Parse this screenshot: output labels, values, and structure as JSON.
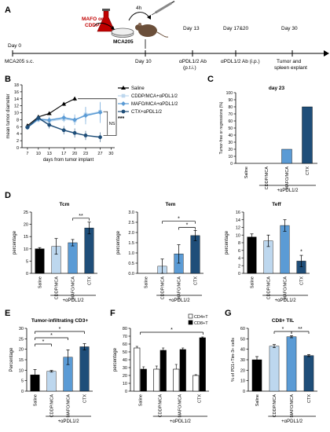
{
  "panels": {
    "A": "A",
    "B": "B",
    "C": "C",
    "D": "D",
    "E": "E",
    "F": "F",
    "G": "G"
  },
  "timeline": {
    "drug_line1": "MAFO or",
    "drug_line2": "CDDP",
    "interval": "4h",
    "cell_line": "MCA205",
    "day0": "Day 0",
    "day0_sub": "MCA205 s.c.",
    "day10": "Day 10",
    "day13": "Day 13",
    "day13_sub1": "αPDL1/2 Ab",
    "day13_sub2": "(p.t.i.)",
    "day1720": "Day 17&20",
    "day1720_sub": "αPDL1/2 Ab (i.p.)",
    "day30": "Day 30",
    "day30_sub1": "Tumor and",
    "day30_sub2": "spleen explant"
  },
  "colors": {
    "black": "#000000",
    "light_blue": "#bdd7ee",
    "mid_blue": "#5b9bd5",
    "dark_blue": "#1f4e79",
    "white": "#ffffff",
    "red": "#c00000"
  },
  "common": {
    "treatment_label": "+αPDL1/2",
    "categories": [
      "Saline",
      "CDDP/MCA",
      "MAFO/MCA",
      "CTX"
    ]
  },
  "chart_data": [
    {
      "id": "B",
      "type": "line",
      "title": "",
      "xlabel": "days from tumor implant",
      "ylabel": "mean tumor diameter",
      "x": [
        7,
        10,
        13,
        17,
        20,
        23,
        27,
        30
      ],
      "xticks": [
        7,
        10,
        13,
        17,
        20,
        23,
        27,
        30
      ],
      "ylim": [
        0,
        18
      ],
      "yticks": [
        0,
        2,
        4,
        6,
        8,
        10,
        12,
        14,
        16,
        18
      ],
      "legend": "top-right",
      "annotations": [
        "***",
        "NS"
      ],
      "series": [
        {
          "name": "Saline",
          "x": [
            7,
            10,
            13,
            17,
            20
          ],
          "values": [
            6.3,
            8.8,
            9.8,
            12.5,
            14.0
          ],
          "err": [
            0.5,
            0.5,
            0.5,
            0.6,
            0.6
          ]
        },
        {
          "name": "CDDP/MCA+αPDL1/2",
          "x": [
            7,
            10,
            13,
            17,
            20,
            23,
            27
          ],
          "values": [
            5.8,
            8.0,
            7.6,
            8.2,
            7.8,
            9.5,
            10.3
          ],
          "err": [
            0.6,
            0.8,
            1.0,
            1.0,
            1.2,
            2.0,
            2.5
          ]
        },
        {
          "name": "MAFO/MCA+αPDL1/2",
          "x": [
            7,
            10,
            13,
            17,
            20,
            23,
            27
          ],
          "values": [
            5.8,
            8.2,
            7.9,
            8.6,
            8.0,
            9.2,
            10.1
          ],
          "err": [
            0.6,
            0.8,
            1.0,
            1.2,
            1.5,
            2.5,
            3.0
          ]
        },
        {
          "name": "CTX+αPDL1/2",
          "x": [
            7,
            10,
            13,
            17,
            20,
            23,
            27
          ],
          "values": [
            5.8,
            8.5,
            6.5,
            5.0,
            4.2,
            3.5,
            3.0
          ],
          "err": [
            0.5,
            0.7,
            1.0,
            1.2,
            1.3,
            1.3,
            1.4
          ]
        }
      ]
    },
    {
      "id": "C",
      "type": "bar",
      "title": "day 23",
      "ylabel": "Tumor-free or regressions (%)",
      "categories": [
        "Saline",
        "CDDP/MCA",
        "MAFO/MCA",
        "CTX"
      ],
      "values": [
        0,
        0,
        20,
        80
      ],
      "ylim": [
        0,
        100
      ],
      "yticks": [
        0,
        10,
        20,
        30,
        40,
        50,
        60,
        70,
        80,
        90,
        100
      ]
    },
    {
      "id": "D1",
      "type": "bar",
      "title": "Tcm",
      "ylabel": "percentage",
      "categories": [
        "Saline",
        "CDDP/MCA",
        "MAFO/MCA",
        "CTX"
      ],
      "values": [
        10,
        11,
        12.5,
        18.5
      ],
      "err": [
        0.5,
        3.2,
        1.3,
        2.4
      ],
      "ylim": [
        0,
        25
      ],
      "yticks": [
        0,
        5,
        10,
        15,
        20,
        25
      ],
      "annotations": [
        "**"
      ]
    },
    {
      "id": "D2",
      "type": "bar",
      "title": "Tem",
      "ylabel": "percentage",
      "categories": [
        "Saline",
        "CDDP/MCA",
        "MAFO/MCA",
        "CTX"
      ],
      "values": [
        0,
        0.35,
        0.95,
        1.85
      ],
      "err": [
        0,
        0.35,
        0.45,
        0.25
      ],
      "ylim": [
        0,
        3
      ],
      "yticks": [
        0.0,
        0.5,
        1.0,
        1.5,
        2.0,
        2.5,
        3.0
      ],
      "annotations": [
        "*",
        "*"
      ]
    },
    {
      "id": "D3",
      "type": "bar",
      "title": "Teff",
      "ylabel": "percentage",
      "categories": [
        "Saline",
        "CDDP/MCA",
        "MAFO/MCA",
        "CTX"
      ],
      "values": [
        9.5,
        8.5,
        12.5,
        3.2
      ],
      "err": [
        0.8,
        1.5,
        1.5,
        1.5
      ],
      "ylim": [
        0,
        16
      ],
      "yticks": [
        0,
        2,
        4,
        6,
        8,
        10,
        12,
        14,
        16
      ],
      "annotations": [
        "*"
      ]
    },
    {
      "id": "E",
      "type": "bar",
      "title": "Tumor-infiltrating CD3+",
      "ylabel": "Percentage",
      "categories": [
        "Saline",
        "CDDP/MCA",
        "MAFO/MCA",
        "CTX"
      ],
      "values": [
        7.8,
        9.5,
        16.2,
        21.2
      ],
      "err": [
        2.5,
        0.4,
        3.5,
        1.5
      ],
      "ylim": [
        0,
        30
      ],
      "yticks": [
        0,
        5,
        10,
        15,
        20,
        25,
        30
      ],
      "annotations": [
        "*",
        "*",
        "*"
      ]
    },
    {
      "id": "F",
      "type": "bar",
      "title": "",
      "ylabel": "percentage",
      "categories": [
        "Saline",
        "CDDP/MCA",
        "MAFO/MCA",
        "CTX"
      ],
      "legend": "top-right",
      "ylim": [
        0,
        80
      ],
      "yticks": [
        0,
        10,
        20,
        30,
        40,
        50,
        60,
        70,
        80
      ],
      "annotations": [
        "*"
      ],
      "series": [
        {
          "name": "CD4+T",
          "values": [
            55,
            28,
            28,
            20
          ],
          "err": [
            2,
            4,
            6,
            1
          ]
        },
        {
          "name": "CD8+T",
          "values": [
            28,
            52,
            53,
            68
          ],
          "err": [
            3,
            3,
            2,
            1
          ]
        }
      ]
    },
    {
      "id": "G",
      "type": "bar",
      "title": "CD8+ TIL",
      "ylabel": "% of PD1+Tim-3+ cells",
      "categories": [
        "Saline",
        "CDDP/MCA",
        "MAFO/MCA",
        "CTX"
      ],
      "values": [
        30,
        43,
        52,
        34
      ],
      "err": [
        3,
        1.5,
        1,
        1
      ],
      "ylim": [
        0,
        60
      ],
      "yticks": [
        0,
        10,
        20,
        30,
        40,
        50,
        60
      ],
      "annotations": [
        "*",
        "**"
      ]
    }
  ]
}
